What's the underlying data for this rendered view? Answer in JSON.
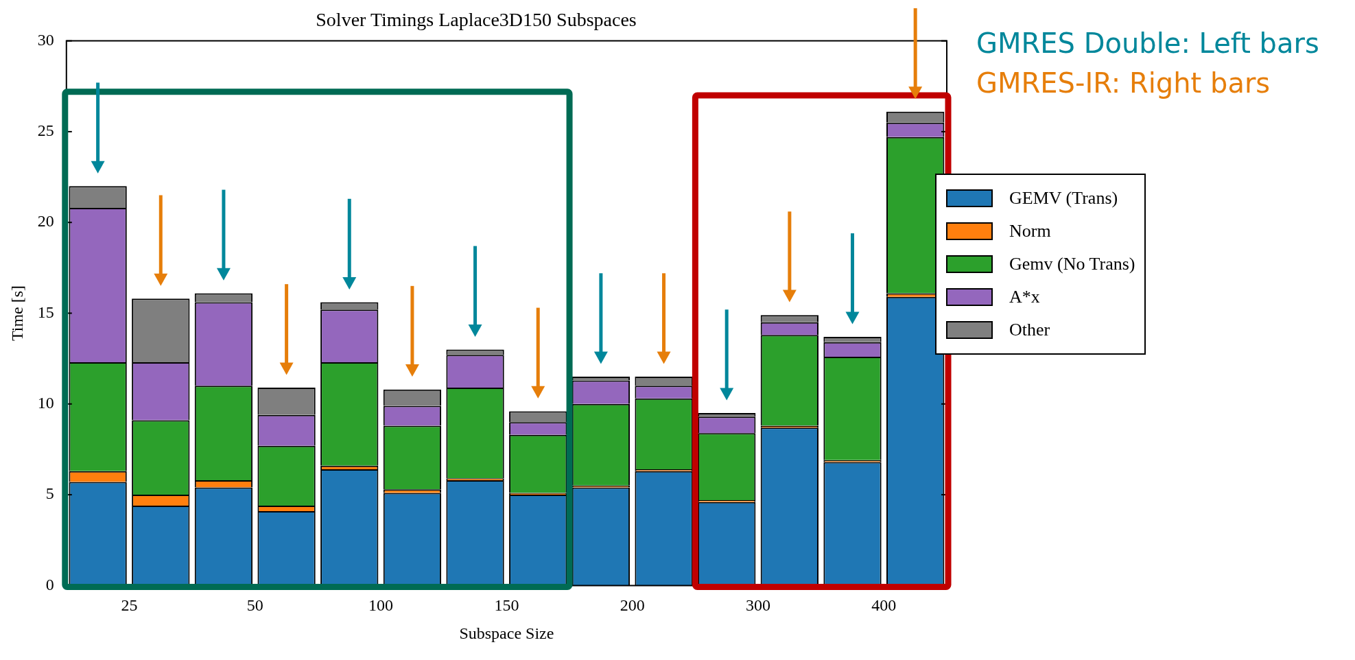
{
  "chart_data": {
    "type": "bar",
    "title": "Solver Timings Laplace3D150 Subspaces",
    "xlabel": "Subspace Size",
    "ylabel": "Time [s]",
    "categories": [
      "25",
      null,
      "50",
      null,
      "100",
      null,
      "150",
      null,
      "200",
      null,
      "300",
      null,
      "400",
      null
    ],
    "stacked": true,
    "legend": "right",
    "ylim": [
      0,
      30
    ],
    "yticks": [
      0,
      5,
      10,
      15,
      20,
      25,
      30
    ],
    "annotations": [
      "GMRES Double: Left bars",
      "GMRES-IR: Right bars"
    ],
    "series": [
      {
        "name": "GEMV (Trans)",
        "color": "#1f77b4",
        "values": [
          5.7,
          4.4,
          5.4,
          4.1,
          6.4,
          5.1,
          5.8,
          5.0,
          5.4,
          6.3,
          4.6,
          8.7,
          6.8,
          15.9
        ]
      },
      {
        "name": "Norm",
        "color": "#ff7f0e",
        "values": [
          0.6,
          0.6,
          0.4,
          0.3,
          0.2,
          0.2,
          0.1,
          0.1,
          0.1,
          0.1,
          0.1,
          0.1,
          0.1,
          0.2
        ]
      },
      {
        "name": "Gemv (No Trans)",
        "color": "#2ca02c",
        "values": [
          6.0,
          4.1,
          5.2,
          3.3,
          5.7,
          3.5,
          5.0,
          3.2,
          4.5,
          3.9,
          3.7,
          5.0,
          5.7,
          8.6
        ]
      },
      {
        "name": "A*x",
        "color": "#9467bd",
        "values": [
          8.5,
          3.2,
          4.6,
          1.7,
          2.9,
          1.1,
          1.8,
          0.7,
          1.3,
          0.7,
          0.9,
          0.7,
          0.8,
          0.8
        ]
      },
      {
        "name": "Other",
        "color": "#7f7f7f",
        "values": [
          1.2,
          3.5,
          0.5,
          1.5,
          0.4,
          0.9,
          0.3,
          0.6,
          0.2,
          0.5,
          0.2,
          0.4,
          0.3,
          0.6
        ]
      }
    ]
  }
}
